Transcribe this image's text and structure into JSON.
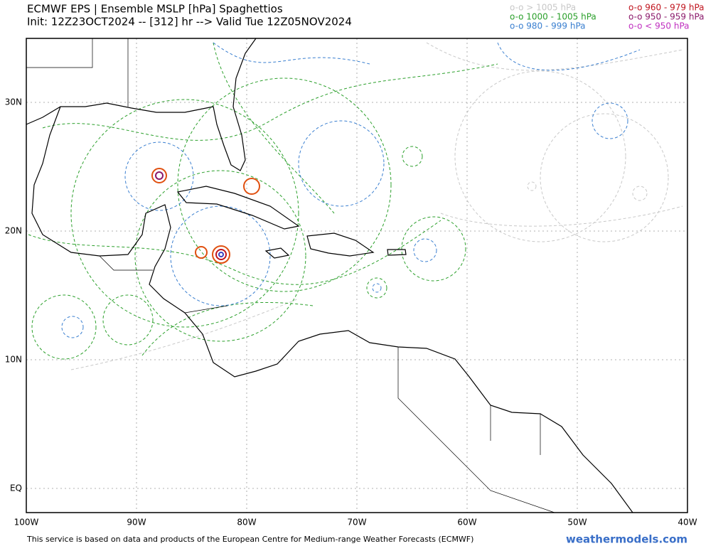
{
  "header": {
    "title": "ECMWF EPS | Ensemble MSLP [hPa] Spaghettios",
    "subtitle": "Init: 12Z23OCT2024 -- [312] hr --> Valid Tue 12Z05NOV2024"
  },
  "legend": [
    {
      "label": "o-o > 1005 hPa",
      "color": "#c8c8c8"
    },
    {
      "label": "o-o 1000 - 1005 hPa",
      "color": "#2ca02c"
    },
    {
      "label": "o-o 980 - 999 hPa",
      "color": "#3a7fd0"
    },
    {
      "label": "o-o 960 - 979 hPa",
      "color": "#c0141e"
    },
    {
      "label": "o-o 950 - 959 hPa",
      "color": "#8b1a6b"
    },
    {
      "label": "o-o < 950 hPa",
      "color": "#c030c0"
    }
  ],
  "map": {
    "lon_ticks": [
      {
        "value": -100,
        "label": "100W"
      },
      {
        "value": -90,
        "label": "90W"
      },
      {
        "value": -80,
        "label": "80W"
      },
      {
        "value": -70,
        "label": "70W"
      },
      {
        "value": -60,
        "label": "60W"
      },
      {
        "value": -50,
        "label": "50W"
      },
      {
        "value": -40,
        "label": "40W"
      }
    ],
    "lat_ticks": [
      {
        "value": 0,
        "label": "EQ"
      },
      {
        "value": 10,
        "label": "10N"
      },
      {
        "value": 20,
        "label": "20N"
      },
      {
        "value": 30,
        "label": "30N"
      }
    ]
  },
  "footer": {
    "note": "This service is based on data and products of the European Centre for Medium-range Weather Forecasts (ECMWF)",
    "site": "weathermodels.com"
  }
}
